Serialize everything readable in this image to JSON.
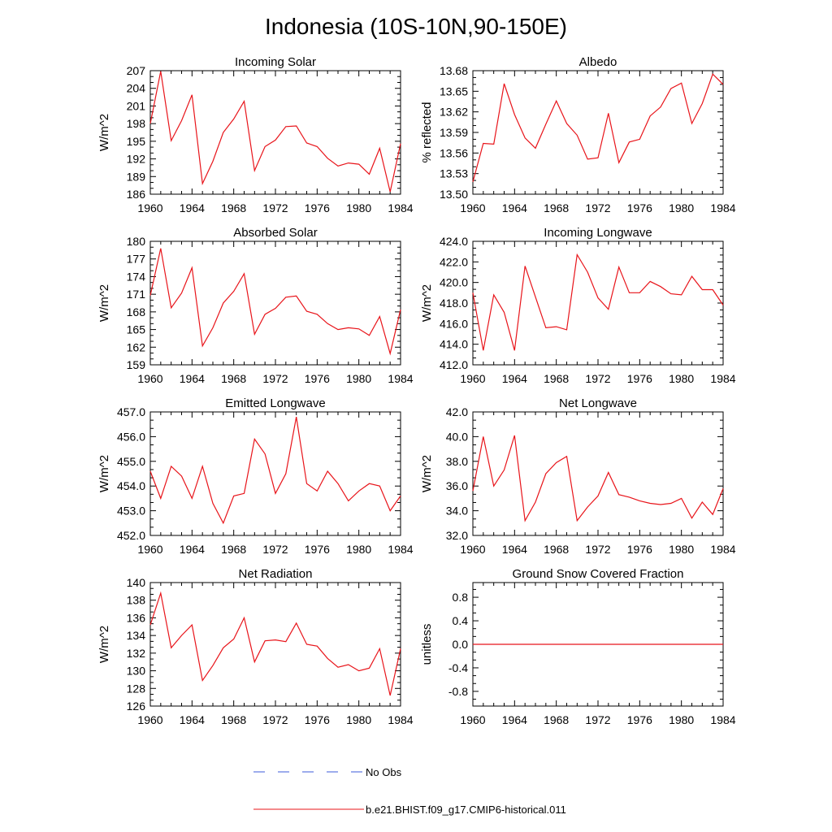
{
  "title": "Indonesia (10S-10N,90-150E)",
  "legend": [
    {
      "label": "No Obs",
      "color": "#3b5bdb",
      "dash": "dashed"
    },
    {
      "label": "b.e21.BHIST.f09_g17.CMIP6-historical.011",
      "color": "#e8141a",
      "dash": "solid"
    }
  ],
  "chart_data": [
    {
      "type": "line",
      "title": "Incoming Solar",
      "ylabel": "W/m^2",
      "xlim": [
        1960,
        1984
      ],
      "ylim": [
        186,
        207
      ],
      "xticks": [
        "1960",
        "1964",
        "1968",
        "1972",
        "1976",
        "1980",
        "1984"
      ],
      "yticks": [
        "186",
        "189",
        "192",
        "195",
        "198",
        "201",
        "204",
        "207"
      ],
      "series": [
        {
          "color": "#e8141a",
          "x": [
            1960,
            1961,
            1962,
            1963,
            1964,
            1965,
            1966,
            1967,
            1968,
            1969,
            1970,
            1971,
            1972,
            1973,
            1974,
            1975,
            1976,
            1977,
            1978,
            1979,
            1980,
            1981,
            1982,
            1983,
            1984
          ],
          "values": [
            198.0,
            206.9,
            195.1,
            198.5,
            202.9,
            187.8,
            191.6,
            196.5,
            198.8,
            201.8,
            190.0,
            194.1,
            195.2,
            197.5,
            197.6,
            194.7,
            194.1,
            192.1,
            190.8,
            191.3,
            191.1,
            189.4,
            193.8,
            186.4,
            194.6
          ]
        }
      ]
    },
    {
      "type": "line",
      "title": "Albedo",
      "ylabel": "% reflected",
      "xlim": [
        1960,
        1984
      ],
      "ylim": [
        13.5,
        13.68
      ],
      "xticks": [
        "1960",
        "1964",
        "1968",
        "1972",
        "1976",
        "1980",
        "1984"
      ],
      "yticks": [
        "13.50",
        "13.53",
        "13.56",
        "13.59",
        "13.62",
        "13.65",
        "13.68"
      ],
      "series": [
        {
          "color": "#e8141a",
          "x": [
            1960,
            1961,
            1962,
            1963,
            1964,
            1965,
            1966,
            1967,
            1968,
            1969,
            1970,
            1971,
            1972,
            1973,
            1974,
            1975,
            1976,
            1977,
            1978,
            1979,
            1980,
            1981,
            1982,
            1983,
            1984
          ],
          "values": [
            13.518,
            13.574,
            13.573,
            13.661,
            13.616,
            13.582,
            13.567,
            13.602,
            13.636,
            13.603,
            13.586,
            13.551,
            13.553,
            13.618,
            13.546,
            13.576,
            13.58,
            13.614,
            13.627,
            13.654,
            13.662,
            13.603,
            13.632,
            13.675,
            13.66
          ]
        }
      ]
    },
    {
      "type": "line",
      "title": "Absorbed Solar",
      "ylabel": "W/m^2",
      "xlim": [
        1960,
        1984
      ],
      "ylim": [
        159,
        180
      ],
      "xticks": [
        "1960",
        "1964",
        "1968",
        "1972",
        "1976",
        "1980",
        "1984"
      ],
      "yticks": [
        "159",
        "162",
        "165",
        "168",
        "171",
        "174",
        "177",
        "180"
      ],
      "series": [
        {
          "color": "#e8141a",
          "x": [
            1960,
            1961,
            1962,
            1963,
            1964,
            1965,
            1966,
            1967,
            1968,
            1969,
            1970,
            1971,
            1972,
            1973,
            1974,
            1975,
            1976,
            1977,
            1978,
            1979,
            1980,
            1981,
            1982,
            1983,
            1984
          ],
          "values": [
            170.8,
            178.8,
            168.7,
            171.2,
            175.5,
            162.2,
            165.3,
            169.5,
            171.5,
            174.5,
            164.2,
            167.6,
            168.6,
            170.5,
            170.7,
            168.1,
            167.6,
            166.0,
            165.0,
            165.3,
            165.1,
            164.0,
            167.2,
            160.9,
            168.4
          ]
        }
      ]
    },
    {
      "type": "line",
      "title": "Incoming Longwave",
      "ylabel": "W/m^2",
      "xlim": [
        1960,
        1984
      ],
      "ylim": [
        412.0,
        424.0
      ],
      "xticks": [
        "1960",
        "1964",
        "1968",
        "1972",
        "1976",
        "1980",
        "1984"
      ],
      "yticks": [
        "412.0",
        "414.0",
        "416.0",
        "418.0",
        "420.0",
        "422.0",
        "424.0"
      ],
      "series": [
        {
          "color": "#e8141a",
          "x": [
            1960,
            1961,
            1962,
            1963,
            1964,
            1965,
            1966,
            1967,
            1968,
            1969,
            1970,
            1971,
            1972,
            1973,
            1974,
            1975,
            1976,
            1977,
            1978,
            1979,
            1980,
            1981,
            1982,
            1983,
            1984
          ],
          "values": [
            419.0,
            413.4,
            418.8,
            417.1,
            413.4,
            421.6,
            418.6,
            415.6,
            415.7,
            415.4,
            422.7,
            421.0,
            418.5,
            417.4,
            421.5,
            419.0,
            419.0,
            420.1,
            419.6,
            418.9,
            418.8,
            420.6,
            419.3,
            419.3,
            417.8
          ]
        }
      ]
    },
    {
      "type": "line",
      "title": "Emitted Longwave",
      "ylabel": "W/m^2",
      "xlim": [
        1960,
        1984
      ],
      "ylim": [
        452.0,
        457.0
      ],
      "xticks": [
        "1960",
        "1964",
        "1968",
        "1972",
        "1976",
        "1980",
        "1984"
      ],
      "yticks": [
        "452.0",
        "453.0",
        "454.0",
        "455.0",
        "456.0",
        "457.0"
      ],
      "series": [
        {
          "color": "#e8141a",
          "x": [
            1960,
            1961,
            1962,
            1963,
            1964,
            1965,
            1966,
            1967,
            1968,
            1969,
            1970,
            1971,
            1972,
            1973,
            1974,
            1975,
            1976,
            1977,
            1978,
            1979,
            1980,
            1981,
            1982,
            1983,
            1984
          ],
          "values": [
            454.6,
            453.5,
            454.8,
            454.4,
            453.5,
            454.8,
            453.3,
            452.5,
            453.6,
            453.7,
            455.9,
            455.3,
            453.7,
            454.5,
            456.8,
            454.1,
            453.8,
            454.6,
            454.1,
            453.4,
            453.8,
            454.1,
            454.0,
            453.0,
            453.6
          ]
        }
      ]
    },
    {
      "type": "line",
      "title": "Net Longwave",
      "ylabel": "W/m^2",
      "xlim": [
        1960,
        1984
      ],
      "ylim": [
        32.0,
        42.0
      ],
      "xticks": [
        "1960",
        "1964",
        "1968",
        "1972",
        "1976",
        "1980",
        "1984"
      ],
      "yticks": [
        "32.0",
        "34.0",
        "36.0",
        "38.0",
        "40.0",
        "42.0"
      ],
      "series": [
        {
          "color": "#e8141a",
          "x": [
            1960,
            1961,
            1962,
            1963,
            1964,
            1965,
            1966,
            1967,
            1968,
            1969,
            1970,
            1971,
            1972,
            1973,
            1974,
            1975,
            1976,
            1977,
            1978,
            1979,
            1980,
            1981,
            1982,
            1983,
            1984
          ],
          "values": [
            35.6,
            40.0,
            36.0,
            37.3,
            40.1,
            33.2,
            34.7,
            37.0,
            37.9,
            38.4,
            33.2,
            34.3,
            35.2,
            37.1,
            35.3,
            35.1,
            34.8,
            34.6,
            34.5,
            34.6,
            35.0,
            33.4,
            34.7,
            33.7,
            35.8
          ]
        }
      ]
    },
    {
      "type": "line",
      "title": "Net Radiation",
      "ylabel": "W/m^2",
      "xlim": [
        1960,
        1984
      ],
      "ylim": [
        126,
        140
      ],
      "xticks": [
        "1960",
        "1964",
        "1968",
        "1972",
        "1976",
        "1980",
        "1984"
      ],
      "yticks": [
        "126",
        "128",
        "130",
        "132",
        "134",
        "136",
        "138",
        "140"
      ],
      "series": [
        {
          "color": "#e8141a",
          "x": [
            1960,
            1961,
            1962,
            1963,
            1964,
            1965,
            1966,
            1967,
            1968,
            1969,
            1970,
            1971,
            1972,
            1973,
            1974,
            1975,
            1976,
            1977,
            1978,
            1979,
            1980,
            1981,
            1982,
            1983,
            1984
          ],
          "values": [
            135.2,
            138.8,
            132.6,
            134.0,
            135.2,
            128.9,
            130.6,
            132.6,
            133.6,
            136.0,
            131.0,
            133.4,
            133.5,
            133.3,
            135.4,
            133.0,
            132.8,
            131.4,
            130.4,
            130.7,
            130.0,
            130.3,
            132.5,
            127.2,
            132.5
          ]
        }
      ]
    },
    {
      "type": "line",
      "title": "Ground Snow Covered Fraction",
      "ylabel": "unitless",
      "xlim": [
        1960,
        1984
      ],
      "ylim": [
        -1.05,
        1.05
      ],
      "xticks": [
        "1960",
        "1964",
        "1968",
        "1972",
        "1976",
        "1980",
        "1984"
      ],
      "yticks": [
        "-0.8",
        "-0.4",
        "0.0",
        "0.4",
        "0.8"
      ],
      "series": [
        {
          "color": "#e8141a",
          "x": [
            1960,
            1984
          ],
          "values": [
            0.0,
            0.0
          ]
        }
      ]
    }
  ]
}
